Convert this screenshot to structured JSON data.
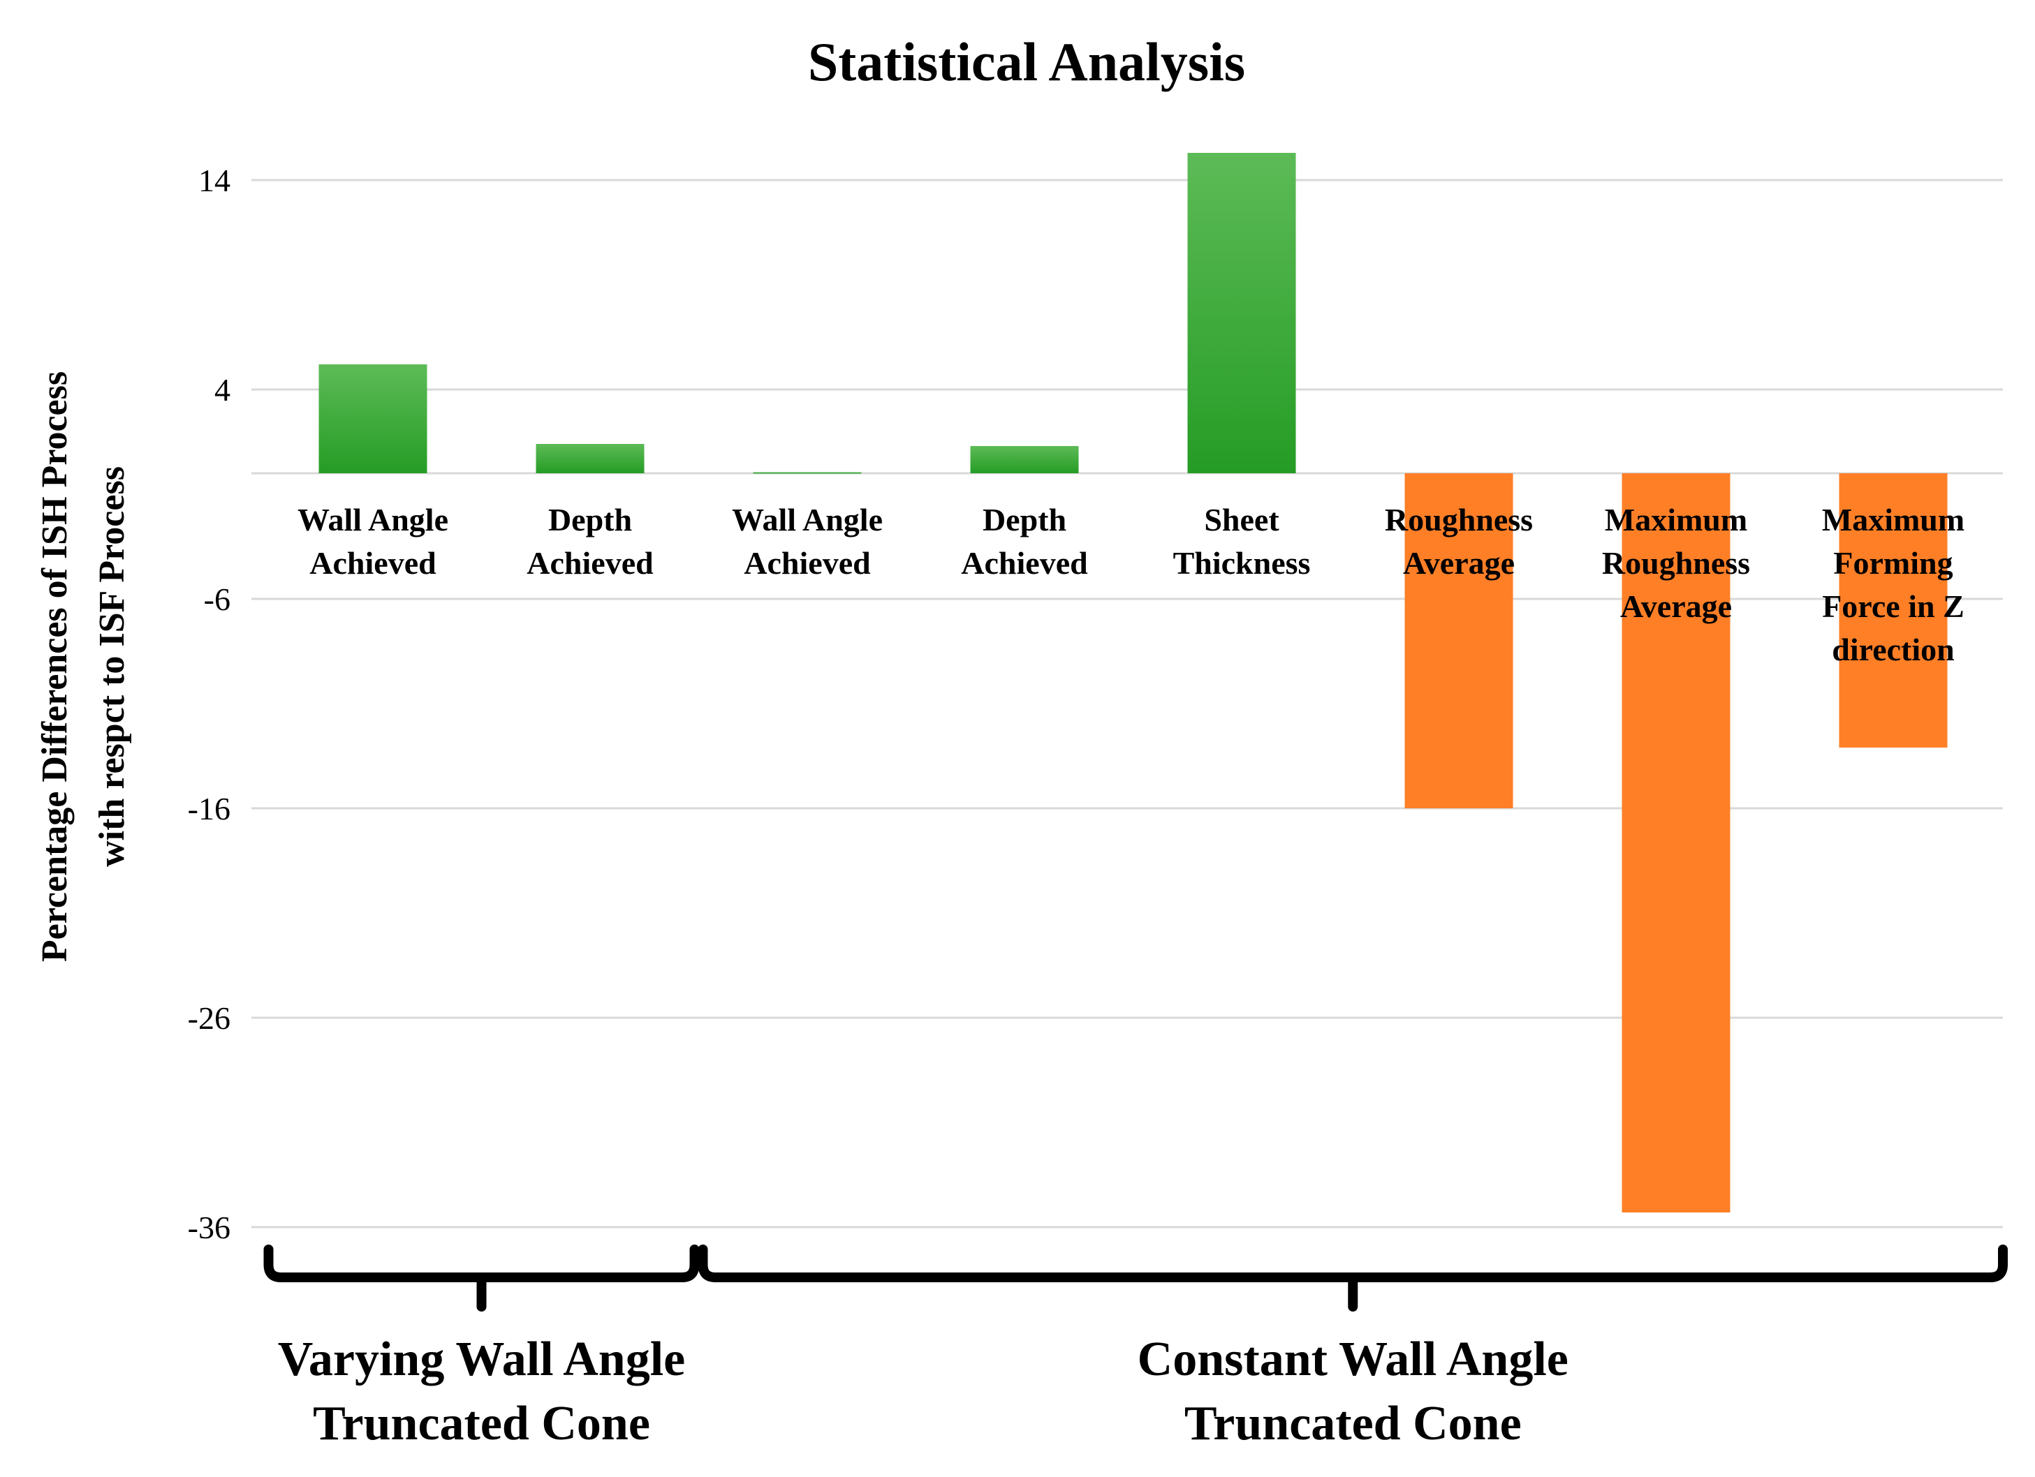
{
  "chart_data": {
    "type": "bar",
    "title": "Statistical Analysis",
    "ylabel": [
      "Percentage Differences of ISH Process",
      "with respct to ISF Process"
    ],
    "xlabel": "",
    "ylim": [
      -36,
      15.5
    ],
    "yticks": [
      14,
      4,
      -6,
      -16,
      -26,
      -36
    ],
    "grid": true,
    "categories": [
      [
        "Wall Angle",
        "Achieved"
      ],
      [
        "Depth",
        "Achieved"
      ],
      [
        "Wall Angle",
        "Achieved"
      ],
      [
        "Depth",
        "Achieved"
      ],
      [
        "Sheet",
        "Thickness"
      ],
      [
        "Roughness",
        "Average"
      ],
      [
        "Maximum",
        "Roughness",
        "Average"
      ],
      [
        "Maximum",
        "Forming",
        "Force in Z",
        "direction"
      ]
    ],
    "values": [
      5.2,
      1.4,
      0.05,
      1.3,
      15.3,
      -16.0,
      -35.3,
      -13.1
    ],
    "colors": {
      "positive": "#2ca02c",
      "negative": "#ff7f27"
    },
    "groups": [
      {
        "label": [
          "Varying Wall Angle",
          "Truncated Cone"
        ],
        "from": 0,
        "to": 1
      },
      {
        "label": [
          "Constant Wall Angle",
          "Truncated Cone"
        ],
        "from": 2,
        "to": 7
      }
    ]
  }
}
